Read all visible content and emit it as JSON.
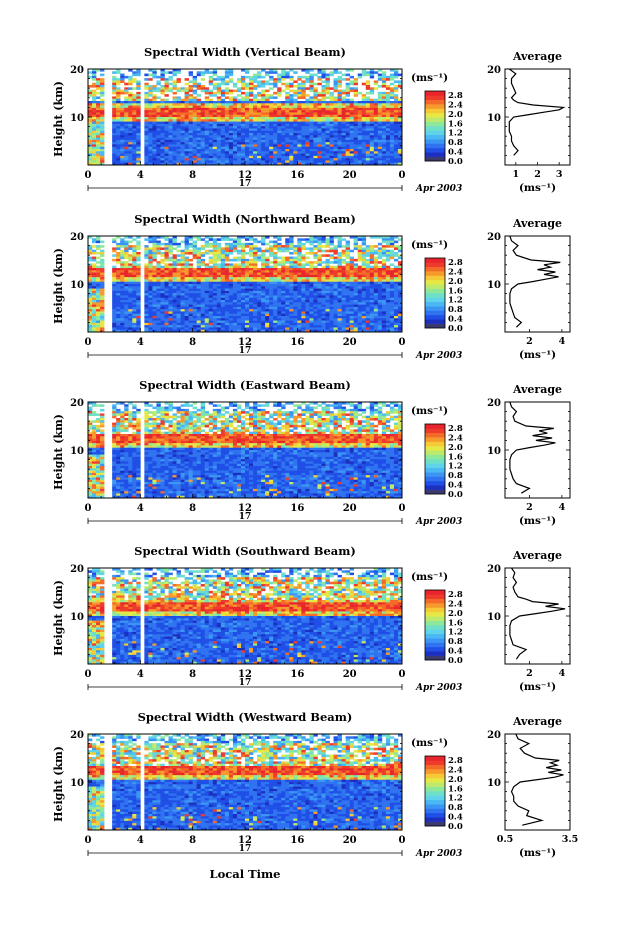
{
  "figure": {
    "xlabel": "Local Time",
    "date_label": "Apr 2003",
    "day_label": "17",
    "average_title": "Average",
    "average_xlabel": "(ms⁻¹)",
    "height_label": "Height (km)",
    "colorbar_unit": "(ms⁻¹)"
  },
  "colorbar": {
    "ticks": [
      "2.8",
      "2.4",
      "2.0",
      "1.6",
      "1.2",
      "0.8",
      "0.4",
      "0.0"
    ],
    "colors": [
      "#3a3a6e",
      "#1c2fbf",
      "#1f4fe6",
      "#2f73f0",
      "#3b96f3",
      "#4ab8f2",
      "#5fd3ea",
      "#6fe0c8",
      "#8ee89a",
      "#bdea6a",
      "#e5e845",
      "#f6c936",
      "#f79a2c",
      "#f46a28",
      "#ee3b2b",
      "#e8242c"
    ]
  },
  "chart_data": [
    {
      "type": "heatmap",
      "title": "Spectral Width (Vertical Beam)",
      "x": [
        0,
        4,
        8,
        12,
        16,
        20,
        0
      ],
      "xlim": [
        0,
        24
      ],
      "ylim": [
        0,
        20
      ],
      "yticks": [
        10,
        20
      ],
      "value_range": [
        0,
        3.0
      ],
      "average": {
        "type": "line",
        "xticks": [
          "1",
          "2",
          "3"
        ],
        "xlim": [
          0.5,
          3.5
        ],
        "heights": [
          2,
          3,
          4,
          5,
          6,
          7,
          8,
          9,
          10,
          10.5,
          11,
          11.5,
          12,
          12.5,
          13,
          13.5,
          14,
          15,
          16,
          17,
          18,
          19,
          20
        ],
        "values": [
          0.9,
          1.1,
          0.9,
          0.8,
          0.8,
          0.7,
          0.7,
          0.7,
          0.9,
          1.6,
          2.3,
          3.0,
          3.2,
          1.8,
          1.1,
          0.9,
          0.8,
          1.0,
          0.9,
          0.8,
          0.8,
          1.0,
          0.7
        ]
      }
    },
    {
      "type": "heatmap",
      "title": "Spectral Width (Northward Beam)",
      "x": [
        0,
        4,
        8,
        12,
        16,
        20,
        0
      ],
      "xlim": [
        0,
        24
      ],
      "ylim": [
        0,
        20
      ],
      "yticks": [
        10,
        20
      ],
      "value_range": [
        0,
        3.0
      ],
      "average": {
        "type": "line",
        "xticks": [
          "2",
          "4"
        ],
        "xlim": [
          0.5,
          4.5
        ],
        "heights": [
          1,
          2,
          3,
          4,
          5,
          6,
          7,
          8,
          9,
          10,
          10.5,
          11,
          11.5,
          12,
          12.5,
          13,
          13.5,
          14,
          14.5,
          15,
          16,
          17,
          18,
          19,
          20
        ],
        "values": [
          1.2,
          1.5,
          1.1,
          1.0,
          0.9,
          0.8,
          0.8,
          0.8,
          0.9,
          1.3,
          2.2,
          3.0,
          3.8,
          2.9,
          3.6,
          2.5,
          3.3,
          2.9,
          3.9,
          2.1,
          1.2,
          1.0,
          1.3,
          0.9,
          0.8
        ]
      }
    },
    {
      "type": "heatmap",
      "title": "Spectral Width (Eastward Beam)",
      "x": [
        0,
        4,
        8,
        12,
        16,
        20,
        0
      ],
      "xlim": [
        0,
        24
      ],
      "ylim": [
        0,
        20
      ],
      "yticks": [
        10,
        20
      ],
      "value_range": [
        0,
        3.0
      ],
      "average": {
        "type": "line",
        "xticks": [
          "2",
          "4"
        ],
        "xlim": [
          0.5,
          4.5
        ],
        "heights": [
          1,
          2,
          3,
          4,
          5,
          6,
          7,
          8,
          9,
          10,
          10.5,
          11,
          11.5,
          12,
          12.5,
          13,
          13.5,
          14,
          14.5,
          15,
          16,
          17,
          18,
          19,
          20
        ],
        "values": [
          1.5,
          2.0,
          1.2,
          1.0,
          0.9,
          0.8,
          0.8,
          0.8,
          0.9,
          1.2,
          2.0,
          2.9,
          3.6,
          2.4,
          3.4,
          2.2,
          3.1,
          2.6,
          3.5,
          1.8,
          1.1,
          1.0,
          1.2,
          0.9,
          0.8
        ]
      }
    },
    {
      "type": "heatmap",
      "title": "Spectral Width (Southward Beam)",
      "x": [
        0,
        4,
        8,
        12,
        16,
        20,
        0
      ],
      "xlim": [
        0,
        24
      ],
      "ylim": [
        0,
        20
      ],
      "yticks": [
        10,
        20
      ],
      "value_range": [
        0,
        3.0
      ],
      "average": {
        "type": "line",
        "xticks": [
          "2",
          "4"
        ],
        "xlim": [
          0.5,
          4.5
        ],
        "heights": [
          1,
          2,
          3,
          4,
          5,
          6,
          7,
          8,
          9,
          10,
          10.5,
          11,
          11.5,
          12,
          12.5,
          13,
          13.5,
          14,
          15,
          16,
          17,
          18,
          19,
          20
        ],
        "values": [
          1.2,
          1.4,
          1.8,
          1.0,
          0.9,
          0.8,
          0.8,
          0.8,
          0.9,
          1.4,
          2.4,
          3.4,
          4.2,
          3.0,
          3.8,
          2.2,
          1.8,
          1.3,
          1.1,
          1.0,
          1.2,
          1.0,
          1.1,
          0.9
        ]
      }
    },
    {
      "type": "heatmap",
      "title": "Spectral Width (Westward Beam)",
      "x": [
        0,
        4,
        8,
        12,
        16,
        20,
        0
      ],
      "xlim": [
        0,
        24
      ],
      "ylim": [
        0,
        20
      ],
      "yticks": [
        10,
        20
      ],
      "value_range": [
        0,
        3.0
      ],
      "average": {
        "type": "line",
        "xticks": [
          "0.5",
          "3.5"
        ],
        "xlim": [
          0.5,
          3.5
        ],
        "heights": [
          1,
          2,
          3,
          4,
          5,
          6,
          7,
          8,
          9,
          10,
          10.5,
          11,
          11.5,
          12,
          12.5,
          13,
          13.5,
          14,
          14.5,
          15,
          16,
          17,
          18,
          19,
          20
        ],
        "values": [
          1.3,
          2.2,
          1.5,
          1.6,
          1.1,
          0.9,
          0.9,
          0.8,
          0.9,
          1.2,
          2.0,
          2.8,
          3.2,
          2.5,
          3.1,
          2.4,
          2.9,
          2.6,
          3.0,
          1.9,
          1.4,
          1.2,
          1.6,
          1.1,
          1.0
        ]
      }
    }
  ]
}
